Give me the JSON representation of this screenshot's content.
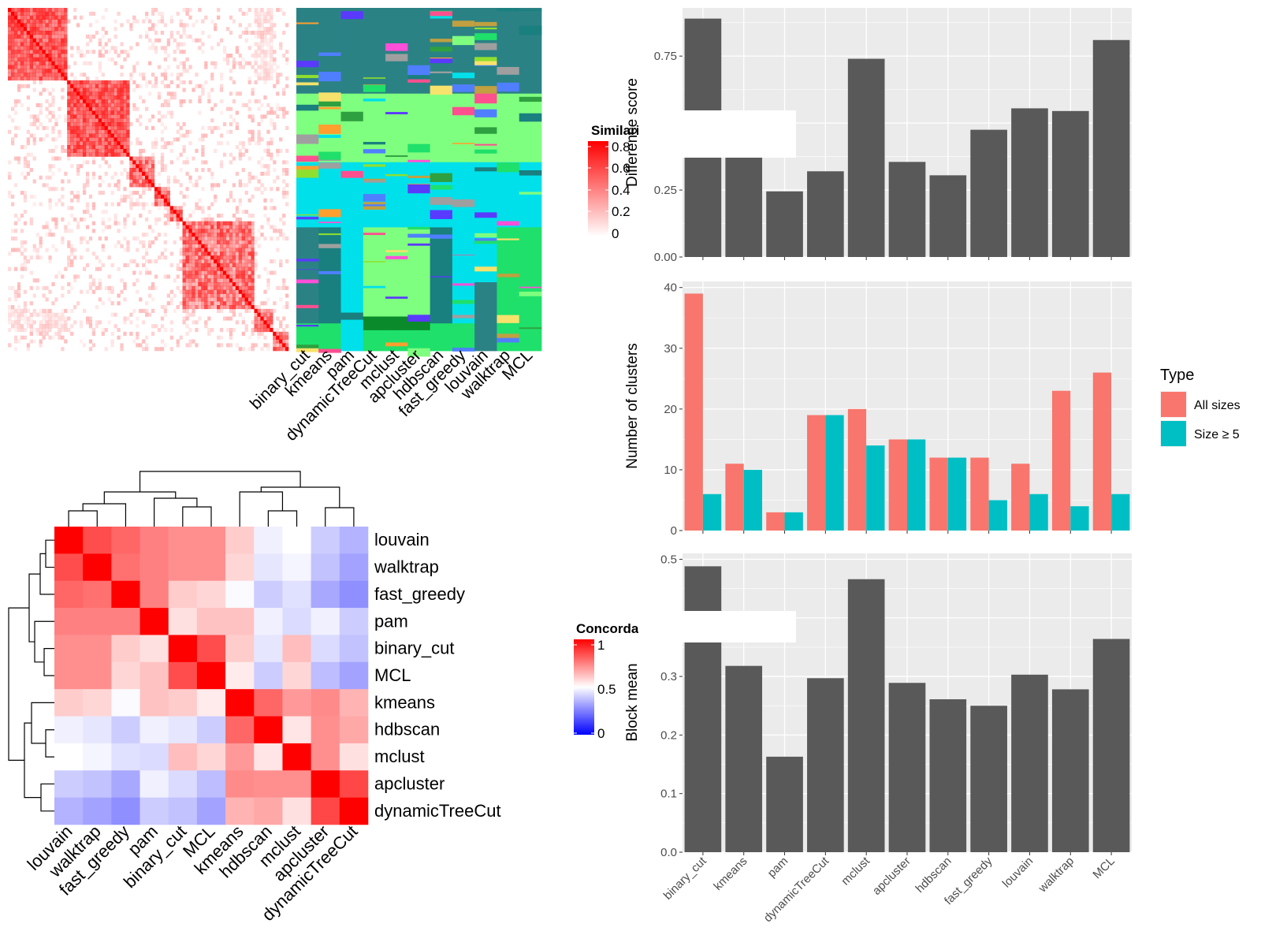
{
  "colors": {
    "panel_bg": "#ebebeb",
    "grid": "#ffffff",
    "bar": "#595959",
    "all_sizes": "#f8766d",
    "size_ge5": "#00bfc4",
    "heat_high": "#ff0000",
    "heat_mid": "#ffffff",
    "heat_low": "#0000ff"
  },
  "chart_data": [
    {
      "id": "similarity_heatmap",
      "type": "heatmap",
      "legend_title": "Similarity",
      "legend_ticks": [
        "0.8",
        "0.6",
        "0.4",
        "0.2",
        "0"
      ],
      "class_columns": [
        "binary_cut",
        "kmeans",
        "pam",
        "dynamicTreeCut",
        "mclust",
        "apcluster",
        "hdbscan",
        "fast_greedy",
        "louvain",
        "walktrap",
        "MCL"
      ]
    },
    {
      "id": "concordance_heatmap",
      "type": "heatmap",
      "legend_title": "Concordance",
      "legend_ticks": [
        "1",
        "0.5",
        "0"
      ],
      "rows": [
        "louvain",
        "walktrap",
        "fast_greedy",
        "pam",
        "binary_cut",
        "MCL",
        "kmeans",
        "hdbscan",
        "mclust",
        "apcluster",
        "dynamicTreeCut"
      ],
      "columns": [
        "louvain",
        "walktrap",
        "fast_greedy",
        "pam",
        "binary_cut",
        "MCL",
        "kmeans",
        "hdbscan",
        "mclust",
        "apcluster",
        "dynamicTreeCut"
      ],
      "values": [
        [
          1.0,
          0.85,
          0.8,
          0.75,
          0.72,
          0.72,
          0.6,
          0.47,
          0.5,
          0.4,
          0.35
        ],
        [
          0.85,
          1.0,
          0.78,
          0.75,
          0.72,
          0.72,
          0.58,
          0.45,
          0.48,
          0.38,
          0.32
        ],
        [
          0.8,
          0.78,
          1.0,
          0.75,
          0.6,
          0.58,
          0.49,
          0.4,
          0.44,
          0.33,
          0.28
        ],
        [
          0.75,
          0.75,
          0.75,
          1.0,
          0.56,
          0.62,
          0.62,
          0.47,
          0.43,
          0.47,
          0.4
        ],
        [
          0.72,
          0.72,
          0.6,
          0.56,
          1.0,
          0.85,
          0.6,
          0.45,
          0.63,
          0.43,
          0.38
        ],
        [
          0.72,
          0.72,
          0.58,
          0.62,
          0.85,
          1.0,
          0.54,
          0.4,
          0.58,
          0.37,
          0.32
        ],
        [
          0.6,
          0.58,
          0.49,
          0.62,
          0.6,
          0.54,
          1.0,
          0.8,
          0.7,
          0.73,
          0.65
        ],
        [
          0.47,
          0.45,
          0.4,
          0.47,
          0.45,
          0.4,
          0.8,
          1.0,
          0.55,
          0.72,
          0.67
        ],
        [
          0.5,
          0.48,
          0.44,
          0.43,
          0.63,
          0.58,
          0.7,
          0.55,
          1.0,
          0.72,
          0.56
        ],
        [
          0.4,
          0.38,
          0.33,
          0.47,
          0.43,
          0.37,
          0.73,
          0.72,
          0.72,
          1.0,
          0.86
        ],
        [
          0.35,
          0.32,
          0.28,
          0.4,
          0.38,
          0.32,
          0.65,
          0.67,
          0.56,
          0.86,
          1.0
        ]
      ]
    },
    {
      "id": "difference_score",
      "type": "bar",
      "ylabel": "Difference score",
      "categories": [
        "binary_cut",
        "kmeans",
        "pam",
        "dynamicTreeCut",
        "mclust",
        "apcluster",
        "hdbscan",
        "fast_greedy",
        "louvain",
        "walktrap",
        "MCL"
      ],
      "values": [
        0.89,
        0.45,
        0.245,
        0.32,
        0.74,
        0.355,
        0.305,
        0.475,
        0.555,
        0.545,
        0.81
      ],
      "yticks": [
        0,
        0.25,
        0.5,
        0.75
      ],
      "ytick_labels": [
        "0.00",
        "0.25",
        "0.50",
        "0.75"
      ],
      "ylim": [
        0,
        0.93
      ]
    },
    {
      "id": "number_of_clusters",
      "type": "bar",
      "ylabel": "Number of clusters",
      "categories": [
        "binary_cut",
        "kmeans",
        "pam",
        "dynamicTreeCut",
        "mclust",
        "apcluster",
        "hdbscan",
        "fast_greedy",
        "louvain",
        "walktrap",
        "MCL"
      ],
      "series": [
        {
          "name": "All sizes",
          "values": [
            39,
            11,
            3,
            19,
            20,
            15,
            12,
            12,
            11,
            23,
            26
          ]
        },
        {
          "name": "Size ≥ 5",
          "values": [
            6,
            10,
            3,
            19,
            14,
            15,
            12,
            5,
            6,
            4,
            6
          ]
        }
      ],
      "yticks": [
        0,
        10,
        20,
        30,
        40
      ],
      "ytick_labels": [
        "0",
        "10",
        "20",
        "30",
        "40"
      ],
      "ylim": [
        0,
        41
      ],
      "legend_title": "Type",
      "legend_position": "right"
    },
    {
      "id": "block_mean",
      "type": "bar",
      "ylabel": "Block mean",
      "categories": [
        "binary_cut",
        "kmeans",
        "pam",
        "dynamicTreeCut",
        "mclust",
        "apcluster",
        "hdbscan",
        "fast_greedy",
        "louvain",
        "walktrap",
        "MCL"
      ],
      "values": [
        0.488,
        0.318,
        0.163,
        0.297,
        0.466,
        0.289,
        0.261,
        0.25,
        0.303,
        0.278,
        0.364
      ],
      "yticks": [
        0,
        0.1,
        0.2,
        0.3,
        0.4,
        0.5
      ],
      "ytick_labels": [
        "0.0",
        "0.1",
        "0.2",
        "0.3",
        "0.4",
        "0.5"
      ],
      "ylim": [
        0,
        0.51
      ]
    }
  ]
}
